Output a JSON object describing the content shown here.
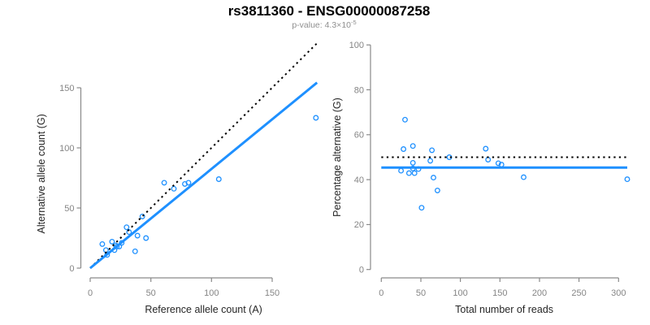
{
  "figure": {
    "title": "rs3811360 - ENSG00000087258",
    "subtitle": {
      "prefix": "p-value: 4.3×10",
      "exponent": "-5"
    }
  },
  "colors": {
    "point_blue": "#1E90FF",
    "fit_blue": "#1E90FF",
    "reference_black": "#000000",
    "axis_gray": "#8a8a8a",
    "tick_text_gray": "#858585",
    "axis_label_dark": "#262626",
    "subtitle_gray": "#8f8f8f",
    "background": "#ffffff"
  },
  "chart_data": [
    {
      "id": "allele-counts",
      "type": "scatter",
      "xlabel": "Reference allele count (A)",
      "ylabel": "Alternative allele count (G)",
      "xticks": [
        0,
        50,
        100,
        150
      ],
      "yticks": [
        0,
        50,
        100,
        150
      ],
      "xlim": [
        0,
        187
      ],
      "ylim": [
        0,
        157
      ],
      "grid": false,
      "legend": "none",
      "points": [
        [
          10,
          20
        ],
        [
          13,
          15
        ],
        [
          14,
          11
        ],
        [
          18,
          22
        ],
        [
          20,
          15
        ],
        [
          21,
          19
        ],
        [
          22,
          18
        ],
        [
          24,
          18
        ],
        [
          26,
          21
        ],
        [
          30,
          34
        ],
        [
          32,
          30
        ],
        [
          37,
          14
        ],
        [
          39,
          27
        ],
        [
          43,
          43
        ],
        [
          46,
          25
        ],
        [
          61,
          71
        ],
        [
          69,
          66
        ],
        [
          78,
          70
        ],
        [
          81,
          71
        ],
        [
          106,
          74
        ],
        [
          186,
          125
        ]
      ],
      "ablines": [
        {
          "name": "identity-line",
          "slope": 1,
          "intercept": 0,
          "style": "dotted",
          "color": "#000000",
          "width": 2
        },
        {
          "name": "fit-line",
          "slope": 0.825,
          "intercept": 0,
          "style": "solid",
          "color": "#1E90FF",
          "width": 3
        }
      ]
    },
    {
      "id": "percentage-alternative",
      "type": "scatter",
      "xlabel": "Total number of reads",
      "ylabel": "Percentage alternative (G)",
      "xticks": [
        0,
        50,
        100,
        150,
        200,
        250,
        300
      ],
      "yticks": [
        0,
        20,
        40,
        60,
        80,
        100
      ],
      "xlim": [
        0,
        311
      ],
      "ylim": [
        0,
        100
      ],
      "grid": false,
      "legend": "none",
      "points": [
        [
          30,
          66.7
        ],
        [
          28,
          53.6
        ],
        [
          25,
          44.0
        ],
        [
          40,
          55.0
        ],
        [
          35,
          42.9
        ],
        [
          40,
          47.5
        ],
        [
          40,
          45.0
        ],
        [
          42,
          42.9
        ],
        [
          47,
          44.7
        ],
        [
          64,
          53.1
        ],
        [
          62,
          48.4
        ],
        [
          51,
          27.5
        ],
        [
          66,
          40.9
        ],
        [
          86,
          50.0
        ],
        [
          71,
          35.2
        ],
        [
          132,
          53.8
        ],
        [
          135,
          48.9
        ],
        [
          148,
          47.3
        ],
        [
          152,
          46.7
        ],
        [
          180,
          41.1
        ],
        [
          311,
          40.2
        ]
      ],
      "hlines": [
        {
          "name": "null-line",
          "y": 50,
          "style": "dotted",
          "color": "#000000",
          "width": 2
        },
        {
          "name": "fit-line",
          "y": 45.4,
          "style": "solid",
          "color": "#1E90FF",
          "width": 3
        }
      ]
    }
  ]
}
